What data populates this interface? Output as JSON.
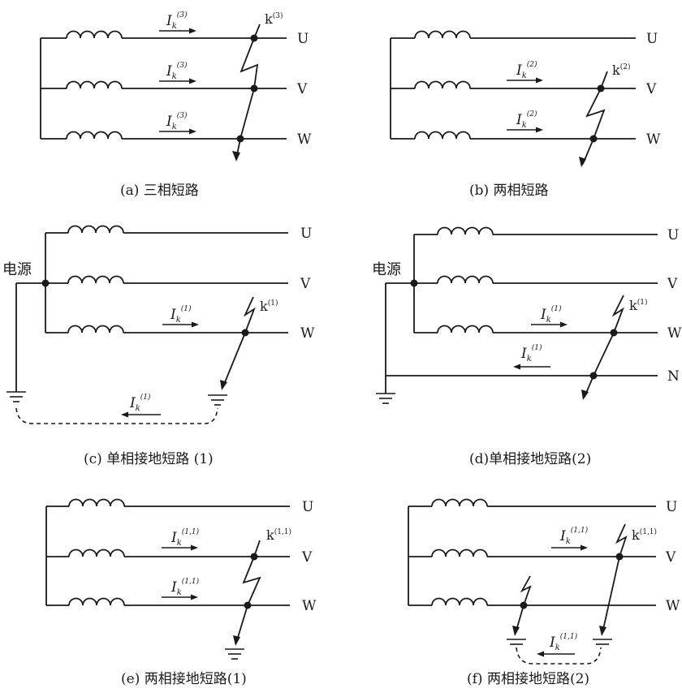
{
  "phase_labels": {
    "U": "U",
    "V": "V",
    "W": "W",
    "N": "N"
  },
  "source_label": "电源",
  "panels": {
    "a": {
      "caption": "(a) 三相短路",
      "fault_point": {
        "main": "k",
        "sup": "(3)"
      },
      "currents": [
        {
          "I": "I",
          "sub": "k",
          "sup": "(3)"
        },
        {
          "I": "I",
          "sub": "k",
          "sup": "(3)"
        },
        {
          "I": "I",
          "sub": "k",
          "sup": "(3)"
        }
      ]
    },
    "b": {
      "caption": "(b) 两相短路",
      "fault_point": {
        "main": "k",
        "sup": "(2)"
      },
      "currents": [
        {
          "I": "I",
          "sub": "k",
          "sup": "(2)"
        },
        {
          "I": "I",
          "sub": "k",
          "sup": "(2)"
        }
      ]
    },
    "c": {
      "caption": "(c) 单相接地短路 (1)",
      "fault_point": {
        "main": "k",
        "sup": "(1)"
      },
      "currents": [
        {
          "I": "I",
          "sub": "k",
          "sup": "(1)"
        },
        {
          "I": "I",
          "sub": "k",
          "sup": "(1)"
        }
      ]
    },
    "d": {
      "caption": "(d)单相接地短路(2)",
      "fault_point": {
        "main": "k",
        "sup": "(1)"
      },
      "currents": [
        {
          "I": "I",
          "sub": "k",
          "sup": "(1)"
        },
        {
          "I": "I",
          "sub": "k",
          "sup": "(1)"
        }
      ]
    },
    "e": {
      "caption": "(e) 两相接地短路(1)",
      "fault_point": {
        "main": "k",
        "sup": "(1,1)"
      },
      "currents": [
        {
          "I": "I",
          "sub": "k",
          "sup": "(1,1)"
        },
        {
          "I": "I",
          "sub": "k",
          "sup": "(1,1)"
        }
      ]
    },
    "f": {
      "caption": "(f) 两相接地短路(2)",
      "fault_point": {
        "main": "k",
        "sup": "(1,1)"
      },
      "currents": [
        {
          "I": "I",
          "sub": "k",
          "sup": "(1,1)"
        },
        {
          "I": "I",
          "sub": "k",
          "sup": "(1,1)"
        }
      ]
    }
  }
}
